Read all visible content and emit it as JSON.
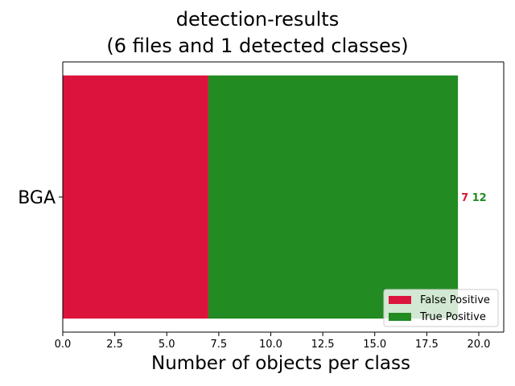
{
  "chart_data": {
    "type": "bar",
    "orientation": "horizontal",
    "stacked": true,
    "title": "detection-results",
    "subtitle": "(6 files and 1 detected classes)",
    "xlabel": "Number of objects per class",
    "ylabel": "",
    "categories": [
      "BGA"
    ],
    "series": [
      {
        "name": "False Positive",
        "values": [
          7
        ],
        "color": "#dc143c"
      },
      {
        "name": "True Positive",
        "values": [
          12
        ],
        "color": "#228b22"
      }
    ],
    "xlim": [
      0,
      21.2
    ],
    "xticks": [
      0.0,
      2.5,
      5.0,
      7.5,
      10.0,
      12.5,
      15.0,
      17.5,
      20.0
    ],
    "xtick_labels": [
      "0.0",
      "2.5",
      "5.0",
      "7.5",
      "10.0",
      "12.5",
      "15.0",
      "17.5",
      "20.0"
    ],
    "data_labels": [
      {
        "category": "BGA",
        "text": "7",
        "color": "#dc143c"
      },
      {
        "category": "BGA",
        "text": "12",
        "color": "#228b22"
      }
    ],
    "legend_position": "lower-right",
    "grid": false
  }
}
